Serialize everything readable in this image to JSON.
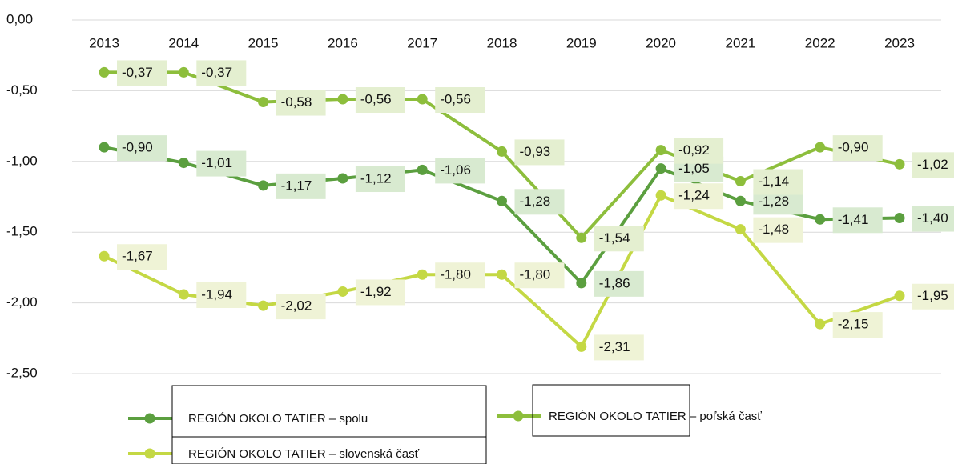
{
  "chart_data": {
    "type": "line",
    "categories": [
      "2013",
      "2014",
      "2015",
      "2016",
      "2017",
      "2018",
      "2019",
      "2020",
      "2021",
      "2022",
      "2023"
    ],
    "series": [
      {
        "name": "REGIÓN OKOLO TATIER – spolu",
        "color": "#5b9f3f",
        "label_bg": "#d8ead0",
        "values": [
          -0.9,
          -1.01,
          -1.17,
          -1.12,
          -1.06,
          -1.28,
          -1.86,
          -1.05,
          -1.28,
          -1.41,
          -1.4
        ],
        "value_labels": [
          "-0,90",
          "-1,01",
          "-1,17",
          "-1,12",
          "-1,06",
          "-1,28",
          "-1,86",
          "-1,05",
          "-1,28",
          "-1,41",
          "-1,40"
        ]
      },
      {
        "name": "REGIÓN OKOLO TATIER – poľská časť",
        "color": "#8dbe3c",
        "label_bg": "#e4efd0",
        "values": [
          -0.37,
          -0.37,
          -0.58,
          -0.56,
          -0.56,
          -0.93,
          -1.54,
          -0.92,
          -1.14,
          -0.9,
          -1.02
        ],
        "value_labels": [
          "-0,37",
          "-0,37",
          "-0,58",
          "-0,56",
          "-0,56",
          "-0,93",
          "-1,54",
          "-0,92",
          "-1,14",
          "-0,90",
          "-1,02"
        ]
      },
      {
        "name": "REGIÓN OKOLO TATIER – slovenská časť",
        "color": "#c4d844",
        "label_bg": "#eff3d6",
        "values": [
          -1.67,
          -1.94,
          -2.02,
          -1.92,
          -1.8,
          -1.8,
          -2.31,
          -1.24,
          -1.48,
          -2.15,
          -1.95
        ],
        "value_labels": [
          "-1,67",
          "-1,94",
          "-2,02",
          "-1,92",
          "-1,80",
          "-1,80",
          "-2,31",
          "-1,24",
          "-1,48",
          "-2,15",
          "-1,95"
        ]
      }
    ],
    "ylim": [
      -2.5,
      0
    ],
    "yticks": [
      {
        "value": 0,
        "label": "0,00"
      },
      {
        "value": -0.5,
        "label": "-0,50"
      },
      {
        "value": -1,
        "label": "-1,00"
      },
      {
        "value": -1.5,
        "label": "-1,50"
      },
      {
        "value": -2,
        "label": "-2,00"
      },
      {
        "value": -2.5,
        "label": "-2,50"
      }
    ],
    "grid": true,
    "legend": "bottom"
  }
}
